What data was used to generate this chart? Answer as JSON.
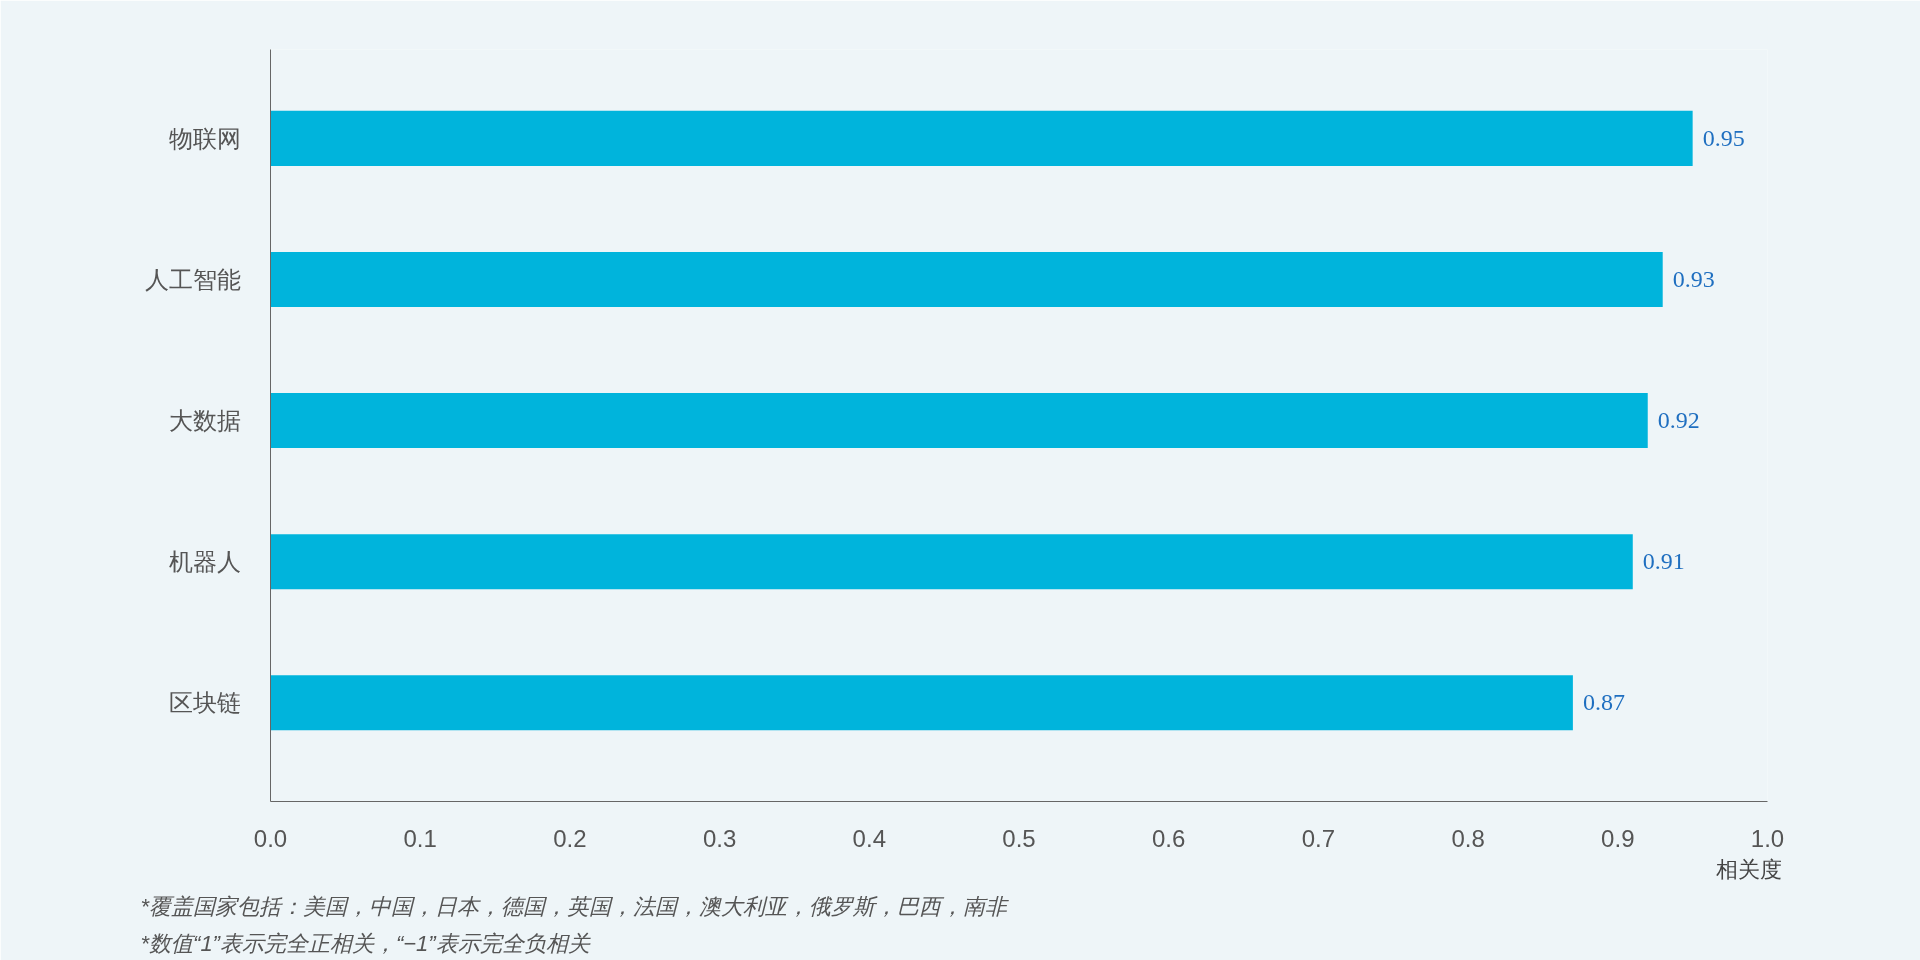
{
  "chart_data": {
    "type": "bar",
    "orientation": "horizontal",
    "categories": [
      "物联网",
      "人工智能",
      "大数据",
      "机器人",
      "区块链"
    ],
    "values": [
      0.95,
      0.93,
      0.92,
      0.91,
      0.87
    ],
    "color": "#00b4dc",
    "xlim": [
      0,
      1
    ],
    "xticks": [
      {
        "value": 0,
        "label": "0.0"
      },
      {
        "value": 0.1,
        "label": "0.1"
      },
      {
        "value": 0.2,
        "label": "0.2"
      },
      {
        "value": 0.3,
        "label": "0.3"
      },
      {
        "value": 0.4,
        "label": "0.4"
      },
      {
        "value": 0.5,
        "label": "0.5"
      },
      {
        "value": 0.6,
        "label": "0.6"
      },
      {
        "value": 0.7,
        "label": "0.7"
      },
      {
        "value": 0.8,
        "label": "0.8"
      },
      {
        "value": 0.9,
        "label": "0.9"
      },
      {
        "value": 1,
        "label": "1.0"
      }
    ],
    "xlabel": "相关度",
    "data_labels": true,
    "grid": false,
    "annotations": [
      "*覆盖国家包括：美国，中国，日本，德国，英国，法国，澳大利亚，俄罗斯，巴西，南非",
      "*数值“1”表示完全正相关，“−1”表示完全负相关"
    ]
  }
}
